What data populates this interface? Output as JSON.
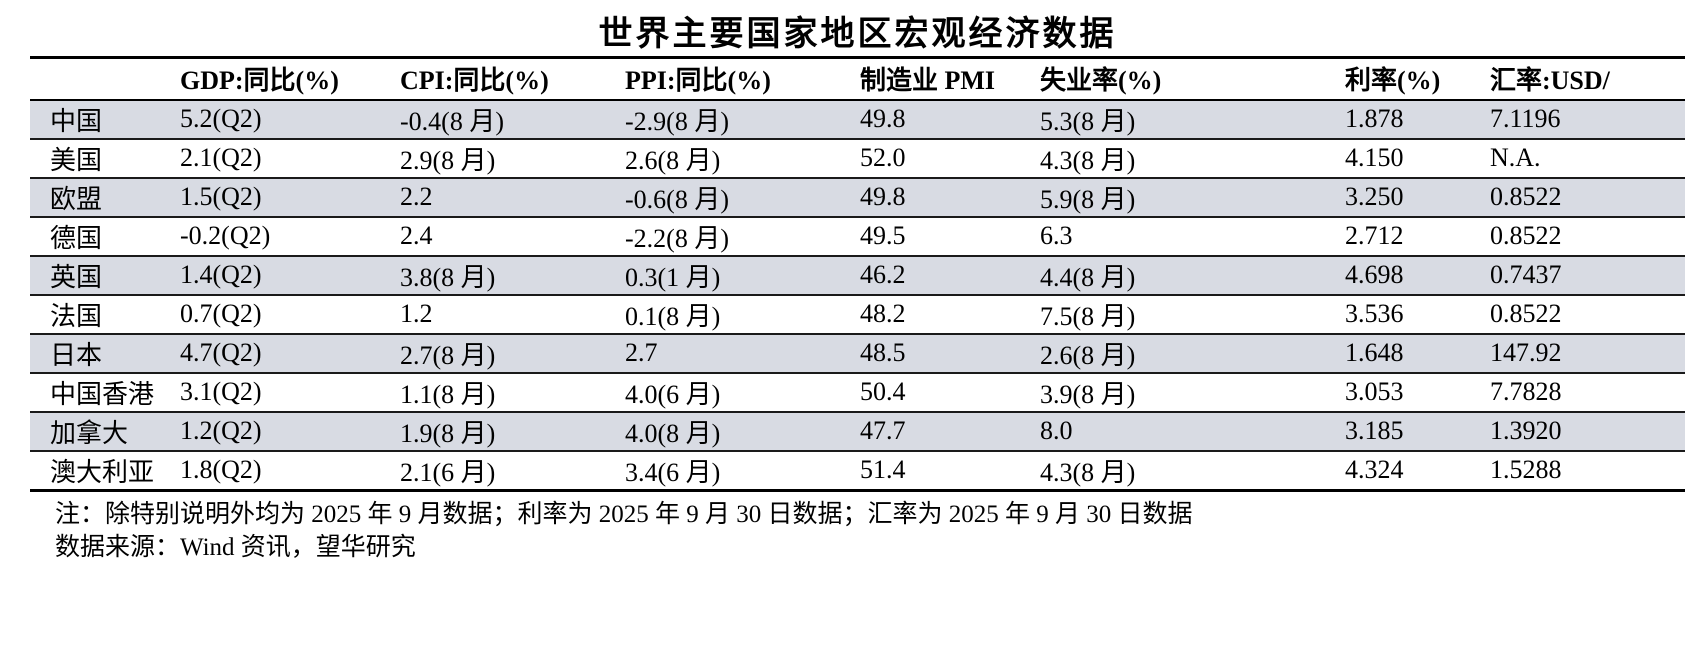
{
  "title": "世界主要国家地区宏观经济数据",
  "table": {
    "columns": [
      "",
      "GDP:同比(%)",
      "CPI:同比(%)",
      "PPI:同比(%)",
      "制造业 PMI",
      "失业率(%)",
      "利率(%)",
      "汇率:USD/"
    ],
    "rows": [
      {
        "region": "中国",
        "gdp": "5.2(Q2)",
        "cpi": "-0.4(8 月)",
        "ppi": "-2.9(8 月)",
        "pmi": "49.8",
        "unemployment": "5.3(8 月)",
        "rate": "1.878",
        "fx": "7.1196"
      },
      {
        "region": "美国",
        "gdp": "2.1(Q2)",
        "cpi": "2.9(8 月)",
        "ppi": "2.6(8 月)",
        "pmi": "52.0",
        "unemployment": "4.3(8 月)",
        "rate": "4.150",
        "fx": "N.A."
      },
      {
        "region": "欧盟",
        "gdp": "1.5(Q2)",
        "cpi": "2.2",
        "ppi": "-0.6(8 月)",
        "pmi": "49.8",
        "unemployment": "5.9(8 月)",
        "rate": "3.250",
        "fx": "0.8522"
      },
      {
        "region": "德国",
        "gdp": "-0.2(Q2)",
        "cpi": "2.4",
        "ppi": "-2.2(8 月)",
        "pmi": "49.5",
        "unemployment": "6.3",
        "rate": "2.712",
        "fx": "0.8522"
      },
      {
        "region": "英国",
        "gdp": "1.4(Q2)",
        "cpi": "3.8(8 月)",
        "ppi": "0.3(1 月)",
        "pmi": "46.2",
        "unemployment": "4.4(8 月)",
        "rate": "4.698",
        "fx": "0.7437"
      },
      {
        "region": "法国",
        "gdp": "0.7(Q2)",
        "cpi": "1.2",
        "ppi": "0.1(8 月)",
        "pmi": "48.2",
        "unemployment": "7.5(8 月)",
        "rate": "3.536",
        "fx": "0.8522"
      },
      {
        "region": "日本",
        "gdp": "4.7(Q2)",
        "cpi": "2.7(8 月)",
        "ppi": "2.7",
        "pmi": "48.5",
        "unemployment": "2.6(8 月)",
        "rate": "1.648",
        "fx": "147.92"
      },
      {
        "region": "中国香港",
        "gdp": "3.1(Q2)",
        "cpi": "1.1(8 月)",
        "ppi": "4.0(6 月)",
        "pmi": "50.4",
        "unemployment": "3.9(8 月)",
        "rate": "3.053",
        "fx": "7.7828"
      },
      {
        "region": "加拿大",
        "gdp": "1.2(Q2)",
        "cpi": "1.9(8 月)",
        "ppi": "4.0(8 月)",
        "pmi": "47.7",
        "unemployment": "8.0",
        "rate": "3.185",
        "fx": "1.3920"
      },
      {
        "region": "澳大利亚",
        "gdp": "1.8(Q2)",
        "cpi": "2.1(6 月)",
        "ppi": "3.4(6 月)",
        "pmi": "51.4",
        "unemployment": "4.3(8 月)",
        "rate": "4.324",
        "fx": "1.5288"
      }
    ]
  },
  "notes": {
    "note1": "注：除特别说明外均为 2025 年 9 月数据；利率为 2025 年 9 月 30 日数据；汇率为 2025 年 9 月 30 日数据",
    "note2": "数据来源：Wind 资讯，望华研究"
  },
  "colors": {
    "stripe": "#d8dbe3",
    "border": "#000000"
  }
}
